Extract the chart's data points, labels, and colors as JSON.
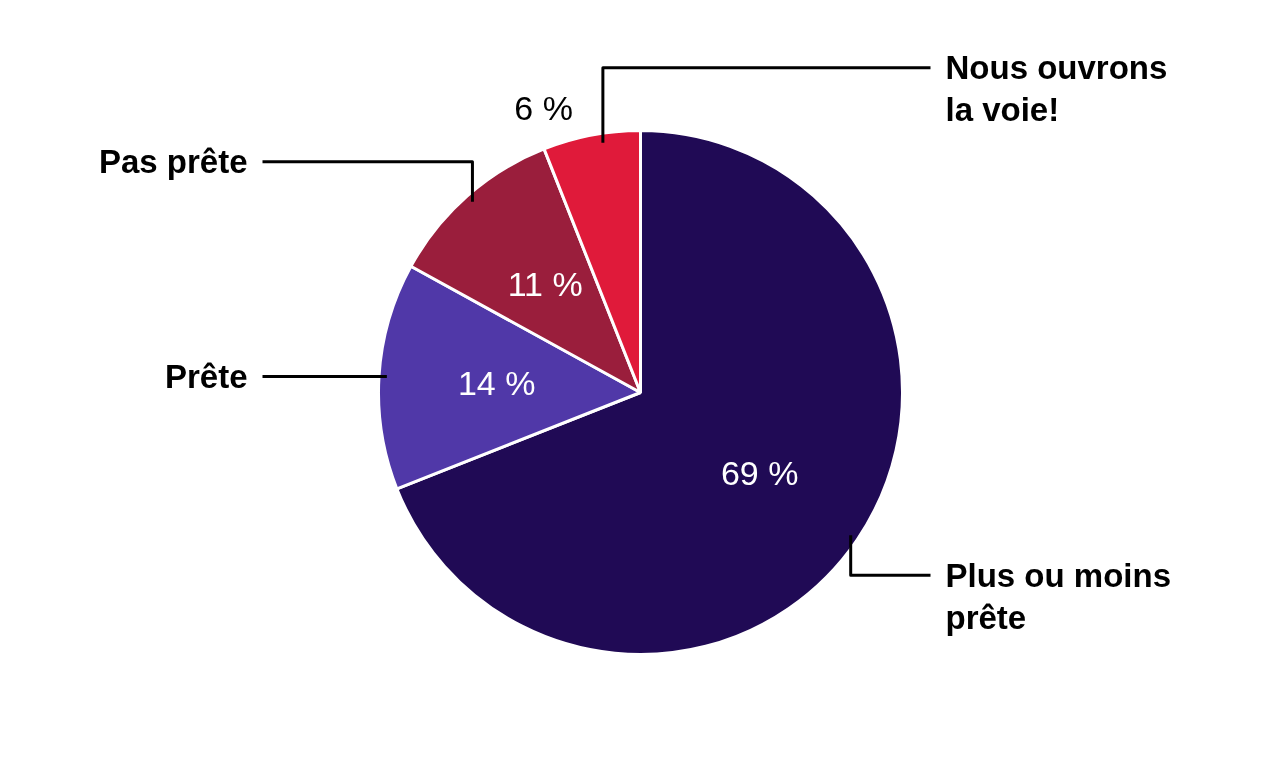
{
  "chart_data": {
    "type": "pie",
    "categories": [
      "Plus ou moins prête",
      "Prête",
      "Pas prête",
      "Nous ouvrons la voie!"
    ],
    "values": [
      69,
      14,
      11,
      6
    ],
    "value_labels": [
      "69 %",
      "14 %",
      "11 %",
      "6 %"
    ],
    "colors": [
      "#200a55",
      "#5038a8",
      "#9a1e3c",
      "#e01a3a"
    ]
  }
}
